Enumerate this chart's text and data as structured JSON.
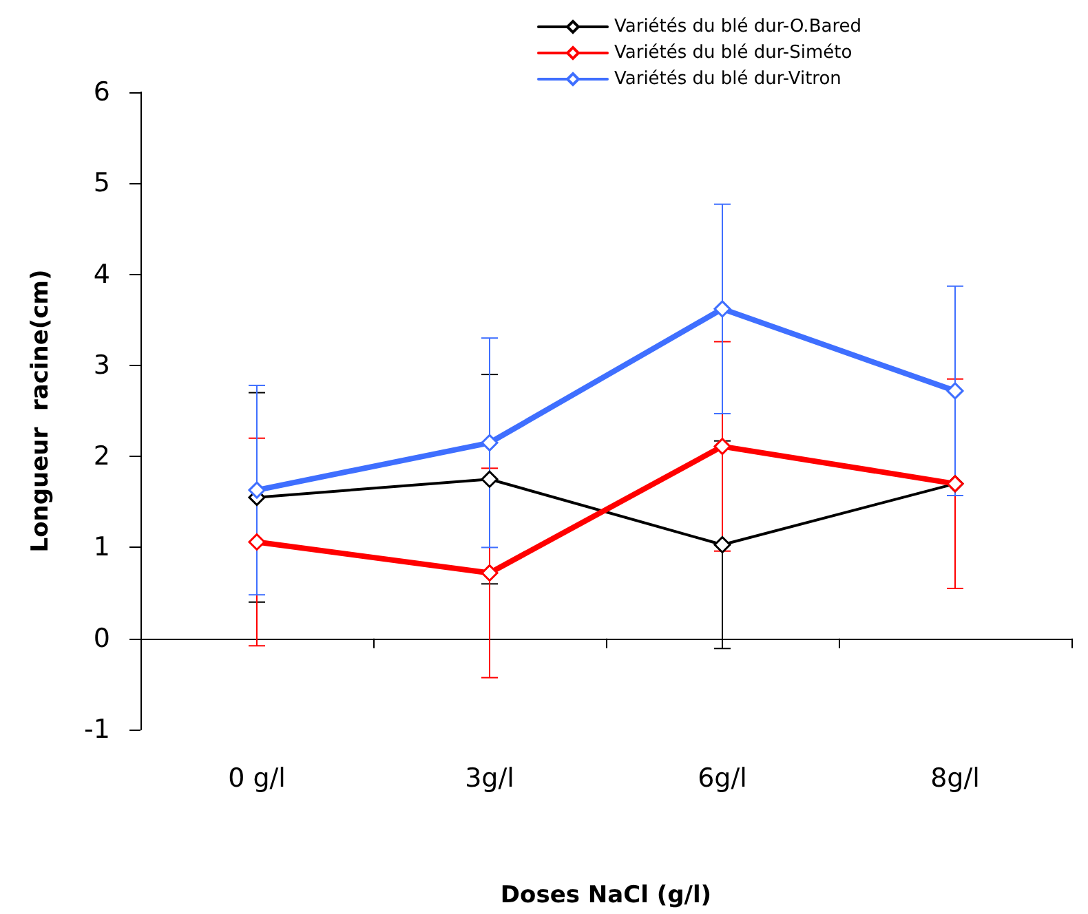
{
  "chart_data": {
    "type": "line",
    "xlabel": "Doses NaCl (g/l)",
    "ylabel": "Longueur  racine(cm)",
    "categories": [
      "0 g/l",
      "3g/l",
      "6g/l",
      "8g/l"
    ],
    "series": [
      {
        "name": "Variétés du blé dur-O.Bared",
        "color": "#000000",
        "values": [
          1.55,
          1.75,
          1.03,
          1.7
        ],
        "errors": [
          1.15,
          1.15,
          1.14,
          null
        ]
      },
      {
        "name": "Variétés du blé dur-Siméto",
        "color": "#ff0000",
        "values": [
          1.06,
          0.72,
          2.11,
          1.7
        ],
        "errors": [
          1.14,
          1.15,
          1.15,
          1.15
        ]
      },
      {
        "name": "Variétés du blé dur-Vitron",
        "color": "#3f6fff",
        "values": [
          1.63,
          2.15,
          3.62,
          2.72
        ],
        "errors": [
          1.15,
          1.15,
          1.15,
          1.15
        ]
      }
    ],
    "ylim": [
      -1,
      6
    ],
    "yticks": [
      -1,
      0,
      1,
      2,
      3,
      4,
      5,
      6
    ],
    "legend": "top right",
    "marker": "diamond",
    "line_style": "solid"
  }
}
